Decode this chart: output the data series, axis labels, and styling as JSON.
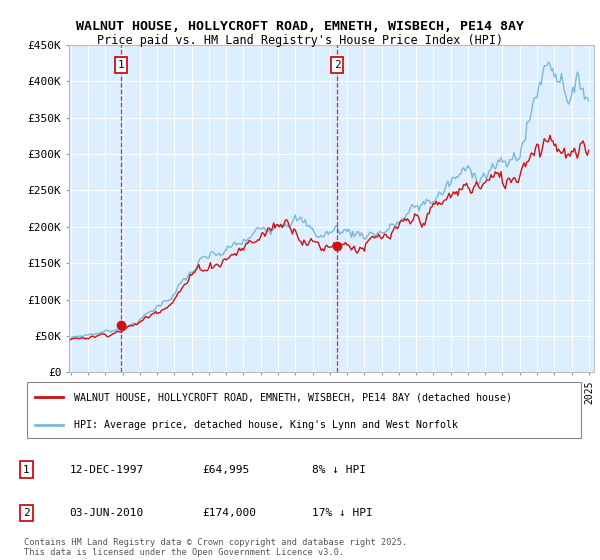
{
  "title1": "WALNUT HOUSE, HOLLYCROFT ROAD, EMNETH, WISBECH, PE14 8AY",
  "title2": "Price paid vs. HM Land Registry's House Price Index (HPI)",
  "legend_line1": "WALNUT HOUSE, HOLLYCROFT ROAD, EMNETH, WISBECH, PE14 8AY (detached house)",
  "legend_line2": "HPI: Average price, detached house, King's Lynn and West Norfolk",
  "footnote": "Contains HM Land Registry data © Crown copyright and database right 2025.\nThis data is licensed under the Open Government Licence v3.0.",
  "sale1_date": "12-DEC-1997",
  "sale1_price": "£64,995",
  "sale1_hpi": "8% ↓ HPI",
  "sale2_date": "03-JUN-2010",
  "sale2_price": "£174,000",
  "sale2_hpi": "17% ↓ HPI",
  "hpi_color": "#7ab8d8",
  "price_color": "#cc1111",
  "sale1_x": 1997.92,
  "sale1_y": 64995,
  "sale2_x": 2010.42,
  "sale2_y": 174000,
  "ylim": [
    0,
    450000
  ],
  "yticks": [
    0,
    50000,
    100000,
    150000,
    200000,
    250000,
    300000,
    350000,
    400000,
    450000
  ],
  "background_color": "#ffffff",
  "plot_bg_color": "#ddeeff",
  "xmin": 1994.9,
  "xmax": 2025.3
}
